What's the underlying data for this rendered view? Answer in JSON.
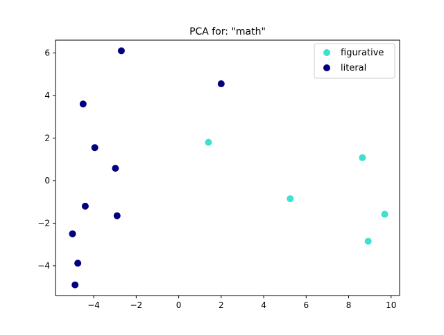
{
  "chart_data": {
    "type": "scatter",
    "title": "PCA for: \"math\"",
    "xlabel": "",
    "ylabel": "",
    "xlim": [
      -5.8,
      10.4
    ],
    "ylim": [
      -5.4,
      6.6
    ],
    "x_ticks": [
      -4,
      -2,
      0,
      2,
      4,
      6,
      8,
      10
    ],
    "y_ticks": [
      -4,
      -2,
      0,
      2,
      4,
      6
    ],
    "x_tick_labels": [
      "−4",
      "−2",
      "0",
      "2",
      "4",
      "6",
      "8",
      "10"
    ],
    "y_tick_labels": [
      "−4",
      "−2",
      "0",
      "2",
      "4",
      "6"
    ],
    "grid": false,
    "legend_position": "top-right",
    "series": [
      {
        "name": "figurative",
        "color": "#40e0d0",
        "points": [
          {
            "x": 1.4,
            "y": 1.8
          },
          {
            "x": 5.25,
            "y": -0.85
          },
          {
            "x": 8.65,
            "y": 1.08
          },
          {
            "x": 8.92,
            "y": -2.85
          },
          {
            "x": 9.7,
            "y": -1.58
          }
        ]
      },
      {
        "name": "literal",
        "color": "#000080",
        "points": [
          {
            "x": -2.7,
            "y": 6.1
          },
          {
            "x": 2.0,
            "y": 4.55
          },
          {
            "x": -4.5,
            "y": 3.6
          },
          {
            "x": -3.95,
            "y": 1.55
          },
          {
            "x": -2.98,
            "y": 0.58
          },
          {
            "x": -4.4,
            "y": -1.2
          },
          {
            "x": -2.9,
            "y": -1.65
          },
          {
            "x": -5.0,
            "y": -2.5
          },
          {
            "x": -4.75,
            "y": -3.88
          },
          {
            "x": -4.88,
            "y": -4.9
          }
        ]
      }
    ]
  }
}
